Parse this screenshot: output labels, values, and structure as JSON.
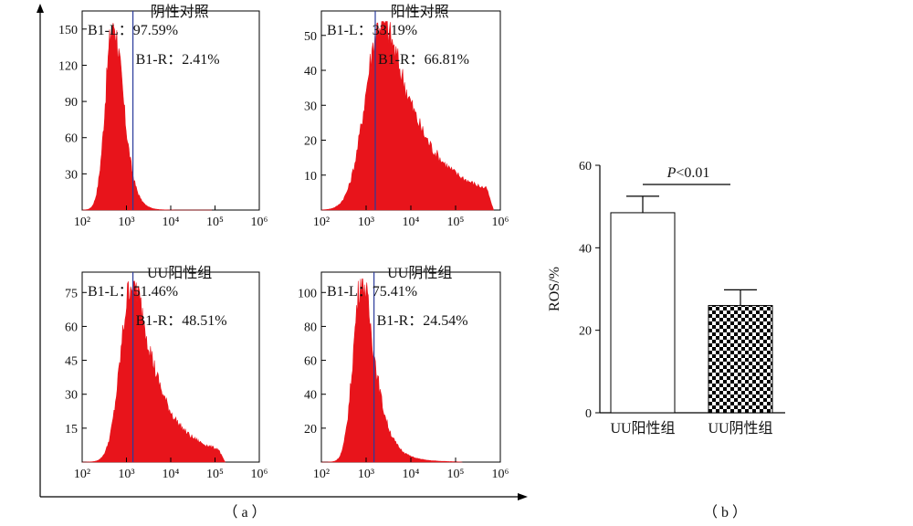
{
  "chart_data": [
    {
      "type": "area",
      "title": "阴性对照",
      "xscale": "log",
      "xlim": [
        100,
        1000000
      ],
      "xticks": [
        "10²",
        "10³",
        "10⁴",
        "10⁵",
        "10⁶"
      ],
      "ylim": [
        0,
        165
      ],
      "yticks": [
        30,
        60,
        90,
        120,
        150
      ],
      "gate": 1400,
      "annotations": [
        {
          "label": "B1-L：",
          "value": "97.59%"
        },
        {
          "label": "B1-R：",
          "value": "2.41%"
        }
      ],
      "peak": 500,
      "peak_value": 155,
      "spread": 0.2,
      "right_tail": 0.1,
      "tail_extent": 60000
    },
    {
      "type": "area",
      "title": "阳性对照",
      "xscale": "log",
      "xlim": [
        100,
        1000000
      ],
      "xticks": [
        "10²",
        "10³",
        "10⁴",
        "10⁵",
        "10⁶"
      ],
      "ylim": [
        0,
        57
      ],
      "yticks": [
        10,
        20,
        30,
        40,
        50
      ],
      "gate": 1600,
      "annotations": [
        {
          "label": "B1-L：",
          "value": "33.19%"
        },
        {
          "label": "B1-R：",
          "value": "66.81%"
        }
      ],
      "peak": 2200,
      "peak_value": 54,
      "spread": 0.42,
      "right_tail": 0.3,
      "tail_extent": 500000
    },
    {
      "type": "area",
      "title": "UU阳性组",
      "xscale": "log",
      "xlim": [
        100,
        1000000
      ],
      "xticks": [
        "10²",
        "10³",
        "10⁴",
        "10⁵",
        "10⁶"
      ],
      "ylim": [
        0,
        84
      ],
      "yticks": [
        15,
        30,
        45,
        60,
        75
      ],
      "gate": 1400,
      "annotations": [
        {
          "label": "B1-L：",
          "value": "51.46%"
        },
        {
          "label": "B1-R：",
          "value": "48.51%"
        }
      ],
      "peak": 1350,
      "peak_value": 80,
      "spread": 0.3,
      "right_tail": 0.28,
      "tail_extent": 120000
    },
    {
      "type": "area",
      "title": "UU阴性组",
      "xscale": "log",
      "xlim": [
        100,
        1000000
      ],
      "xticks": [
        "10²",
        "10³",
        "10⁴",
        "10⁵",
        "10⁶"
      ],
      "ylim": [
        0,
        112
      ],
      "yticks": [
        20,
        40,
        60,
        80,
        100
      ],
      "gate": 1500,
      "annotations": [
        {
          "label": "B1-L：",
          "value": "75.41%"
        },
        {
          "label": "B1-R：",
          "value": "24.54%"
        }
      ],
      "peak": 800,
      "peak_value": 108,
      "spread": 0.22,
      "right_tail": 0.18,
      "tail_extent": 100000
    },
    {
      "type": "bar",
      "categories": [
        "UU阳性组",
        "UU阴性组"
      ],
      "values": [
        48.5,
        26.0
      ],
      "errors": [
        4.0,
        3.8
      ],
      "ylabel": "ROS/%",
      "ylim": [
        0,
        60
      ],
      "yticks": [
        0,
        20,
        40,
        60
      ],
      "significance": "P<0.01",
      "colors": [
        "#ffffff",
        "checker"
      ]
    }
  ],
  "captions": {
    "a": "（ a ）",
    "b": "（ b ）"
  },
  "colors": {
    "histogram": "#e8141b",
    "gate": "#2a3b9c",
    "axis": "#000000"
  }
}
